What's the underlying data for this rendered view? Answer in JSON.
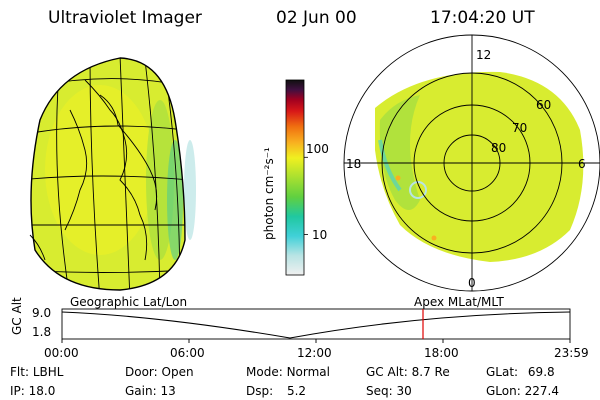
{
  "header": {
    "instrument": "Ultraviolet Imager",
    "date": "02 Jun 00",
    "time": "17:04:20 UT"
  },
  "colorbar": {
    "label": "photon cm⁻²s⁻¹",
    "ticks": [
      {
        "value": 10,
        "label": "10"
      },
      {
        "value": 100,
        "label": "100"
      }
    ],
    "range": [
      3,
      1000
    ],
    "colors": [
      "#f0f0f0",
      "#b8e4e4",
      "#40d0d8",
      "#20c8a0",
      "#60d040",
      "#a8e030",
      "#f0f020",
      "#f8b020",
      "#f07010",
      "#d81818",
      "#a00020",
      "#401040",
      "#101010"
    ]
  },
  "left_panel": {
    "label": "Geographic Lat/Lon"
  },
  "right_panel": {
    "label": "Apex MLat/MLT",
    "mlt_labels": {
      "top": "12",
      "left": "18",
      "right": "6",
      "bottom": "0"
    },
    "lat_rings": [
      "60",
      "70",
      "80"
    ]
  },
  "orbit_plot": {
    "ylabel": "GC Alt",
    "ytick_top": "9.0",
    "ytick_bottom": "1.8",
    "xticks": [
      "00:00",
      "06:00",
      "12:00",
      "18:00",
      "23:59"
    ],
    "current_time_marker": "17:04",
    "marker_color": "#e00000"
  },
  "info": {
    "flt_label": "Flt:",
    "flt_value": "LBHL",
    "ip_label": "IP:",
    "ip_value": "18.0",
    "door_label": "Door:",
    "door_value": "Open",
    "gain_label": "Gain:",
    "gain_value": "13",
    "mode_label": "Mode:",
    "mode_value": "Normal",
    "dsp_label": "Dsp:",
    "dsp_value": "5.2",
    "gcalt_label": "GC Alt:",
    "gcalt_value": "8.7 Re",
    "seq_label": "Seq:",
    "seq_value": "30",
    "glat_label": "GLat:",
    "glat_value": "69.8",
    "glon_label": "GLon:",
    "glon_value": "227.4"
  }
}
